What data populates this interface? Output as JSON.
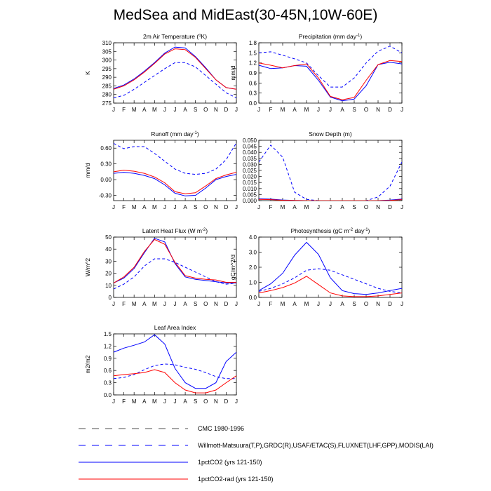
{
  "title": "MedSea and MidEast(30-45N,10W-60E)",
  "months": [
    "J",
    "F",
    "M",
    "A",
    "M",
    "J",
    "J",
    "A",
    "S",
    "O",
    "N",
    "D",
    "J"
  ],
  "legend": [
    {
      "label": "CMC 1980-1996",
      "color": "#4d4d4d",
      "dashed": true
    },
    {
      "label": "Willmott-Matsuura(T,P),GRDC(R),USAF/ETAC(S),FLUXNET(LHF,GPP),MODIS(LAI)",
      "color": "#0000ff",
      "dashed": true
    },
    {
      "label": "1pctCO2 (yrs 121-150)",
      "color": "#0000ff",
      "dashed": false
    },
    {
      "label": "1pctCO2-rad (yrs 121-150)",
      "color": "#ff0000",
      "dashed": false
    }
  ],
  "chart_data": [
    {
      "type": "line",
      "title": "2m Air Temperature (",
      "title_sup": "o",
      "title_end": "K)",
      "ylabel": "K",
      "ylim": [
        275,
        310
      ],
      "yticks": [
        "275",
        "280",
        "285",
        "290",
        "295",
        "300",
        "305",
        "310"
      ],
      "ytick_values": [
        275,
        280,
        285,
        290,
        295,
        300,
        305,
        310
      ],
      "series": [
        {
          "style": "obs-dash",
          "color": "#0000ff",
          "values": [
            278,
            279.5,
            283,
            287,
            291,
            295,
            298.5,
            298.5,
            296,
            291,
            286,
            281,
            278
          ]
        },
        {
          "style": "solid",
          "color": "#0000ff",
          "values": [
            283.5,
            285.5,
            289,
            293.5,
            298.5,
            304,
            307.5,
            307,
            302,
            295.5,
            288.5,
            284,
            283
          ]
        },
        {
          "style": "solid",
          "color": "#ff0000",
          "values": [
            283,
            285,
            288.5,
            293,
            298,
            303.5,
            306.5,
            306,
            301.5,
            295,
            288.5,
            284,
            283
          ]
        }
      ]
    },
    {
      "type": "line",
      "title": "Precipitation (mm day",
      "title_sup": "-1",
      "title_end": ")",
      "ylabel": "mm/d",
      "ylim": [
        0,
        1.8
      ],
      "yticks": [
        "0.0",
        "0.3",
        "0.6",
        "0.9",
        "1.2",
        "1.5",
        "1.8"
      ],
      "ytick_values": [
        0,
        0.3,
        0.6,
        0.9,
        1.2,
        1.5,
        1.8
      ],
      "series": [
        {
          "style": "obs-dash",
          "color": "#0000ff",
          "values": [
            1.5,
            1.53,
            1.43,
            1.32,
            1.2,
            0.82,
            0.48,
            0.48,
            0.75,
            1.2,
            1.55,
            1.7,
            1.5
          ]
        },
        {
          "style": "solid",
          "color": "#0000ff",
          "values": [
            1.13,
            1.03,
            1.05,
            1.12,
            1.1,
            0.68,
            0.18,
            0.07,
            0.12,
            0.52,
            1.15,
            1.22,
            1.17
          ]
        },
        {
          "style": "solid",
          "color": "#ff0000",
          "values": [
            1.2,
            1.13,
            1.05,
            1.12,
            1.17,
            0.75,
            0.2,
            0.1,
            0.17,
            0.68,
            1.15,
            1.27,
            1.24
          ]
        }
      ]
    },
    {
      "type": "line",
      "title": "Runoff (mm day",
      "title_sup": "-1",
      "title_end": ")",
      "ylabel": "mm/d",
      "ylim": [
        -0.4,
        0.75
      ],
      "yticks": [
        "-0.30",
        "0.00",
        "0.30",
        "0.60"
      ],
      "ytick_values": [
        -0.3,
        0,
        0.3,
        0.6
      ],
      "series": [
        {
          "style": "obs-dash",
          "color": "#0000ff",
          "values": [
            0.69,
            0.59,
            0.63,
            0.63,
            0.5,
            0.35,
            0.2,
            0.12,
            0.1,
            0.12,
            0.2,
            0.38,
            0.7
          ]
        },
        {
          "style": "solid",
          "color": "#0000ff",
          "values": [
            0.12,
            0.14,
            0.12,
            0.08,
            0.02,
            -0.1,
            -0.26,
            -0.31,
            -0.3,
            -0.16,
            0.0,
            0.06,
            0.1
          ]
        },
        {
          "style": "solid",
          "color": "#ff0000",
          "values": [
            0.15,
            0.18,
            0.16,
            0.12,
            0.05,
            -0.06,
            -0.23,
            -0.27,
            -0.25,
            -0.12,
            0.02,
            0.09,
            0.14
          ]
        }
      ]
    },
    {
      "type": "line",
      "title": "Snow Depth (m)",
      "title_sup": "",
      "title_end": "",
      "ylabel": "",
      "ylim": [
        0,
        0.05
      ],
      "yticks": [
        "0.000",
        "0.005",
        "0.010",
        "0.015",
        "0.020",
        "0.025",
        "0.030",
        "0.035",
        "0.040",
        "0.045",
        "0.050"
      ],
      "ytick_values": [
        0,
        0.005,
        0.01,
        0.015,
        0.02,
        0.025,
        0.03,
        0.035,
        0.04,
        0.045,
        0.05
      ],
      "series": [
        {
          "style": "obs-dash",
          "color": "#0000ff",
          "values": [
            0.032,
            0.046,
            0.036,
            0.007,
            0.001,
            0,
            0,
            0,
            0,
            0,
            0.003,
            0.012,
            0.032
          ]
        },
        {
          "style": "solid",
          "color": "#0000ff",
          "values": [
            0.0015,
            0.0012,
            0.0005,
            0.0001,
            0,
            0,
            0,
            0,
            0,
            0,
            0,
            0.0004,
            0.0013
          ]
        },
        {
          "style": "solid",
          "color": "#ff0000",
          "values": [
            0.001,
            0.0008,
            0.0003,
            0.0001,
            0,
            0,
            0,
            0,
            0,
            0,
            0,
            0.0002,
            0.0008
          ]
        }
      ]
    },
    {
      "type": "line",
      "title": "Latent Heat Flux (W m",
      "title_sup": "-2",
      "title_end": ")",
      "ylabel": "W/m^2",
      "ylim": [
        0,
        50
      ],
      "yticks": [
        "0",
        "10",
        "20",
        "30",
        "40",
        "50"
      ],
      "ytick_values": [
        0,
        10,
        20,
        30,
        40,
        50
      ],
      "series": [
        {
          "style": "obs-dash",
          "color": "#0000ff",
          "values": [
            7,
            11,
            17,
            26,
            32,
            32,
            29,
            25,
            21,
            17,
            13,
            11,
            12
          ]
        },
        {
          "style": "solid",
          "color": "#0000ff",
          "values": [
            12,
            16,
            24,
            37,
            49,
            46,
            28,
            17,
            15,
            14,
            13,
            12,
            12
          ]
        },
        {
          "style": "solid",
          "color": "#ff0000",
          "values": [
            12,
            17,
            25,
            38,
            48,
            44,
            29,
            18,
            16,
            15,
            14.5,
            12.5,
            12.5
          ]
        }
      ]
    },
    {
      "type": "line",
      "title": "Photosynthesis (gC m",
      "title_sup": "-2",
      "title_end": "day",
      "title_sup2": "-1",
      "title_end2": ")",
      "ylabel": "gC/m^2/d",
      "ylim": [
        0,
        4.0
      ],
      "yticks": [
        "0.0",
        "1.0",
        "2.0",
        "3.0",
        "4.0"
      ],
      "ytick_values": [
        0,
        1,
        2,
        3,
        4
      ],
      "series": [
        {
          "style": "obs-dash",
          "color": "#0000ff",
          "values": [
            0.4,
            0.6,
            0.9,
            1.3,
            1.8,
            1.9,
            1.8,
            1.5,
            1.2,
            0.9,
            0.6,
            0.4,
            0.3
          ]
        },
        {
          "style": "solid",
          "color": "#0000ff",
          "values": [
            0.45,
            0.9,
            1.6,
            2.8,
            3.65,
            2.85,
            1.3,
            0.45,
            0.25,
            0.2,
            0.3,
            0.45,
            0.6
          ]
        },
        {
          "style": "solid",
          "color": "#ff0000",
          "values": [
            0.3,
            0.45,
            0.65,
            0.95,
            1.4,
            0.85,
            0.3,
            0.1,
            0.05,
            0.05,
            0.1,
            0.2,
            0.3
          ]
        }
      ]
    },
    {
      "type": "line",
      "title": "Leaf Area Index",
      "title_sup": "",
      "title_end": "",
      "ylabel": "m2/m2",
      "ylim": [
        0,
        1.5
      ],
      "yticks": [
        "0.0",
        "0.3",
        "0.6",
        "0.9",
        "1.2",
        "1.5"
      ],
      "ytick_values": [
        0,
        0.3,
        0.6,
        0.9,
        1.2,
        1.5
      ],
      "series": [
        {
          "style": "obs-dash",
          "color": "#0000ff",
          "values": [
            0.4,
            0.43,
            0.5,
            0.62,
            0.72,
            0.76,
            0.74,
            0.68,
            0.63,
            0.55,
            0.45,
            0.4,
            0.4
          ]
        },
        {
          "style": "solid",
          "color": "#0000ff",
          "values": [
            1.05,
            1.15,
            1.22,
            1.3,
            1.48,
            1.25,
            0.65,
            0.3,
            0.16,
            0.16,
            0.3,
            0.82,
            1.05
          ]
        },
        {
          "style": "solid",
          "color": "#ff0000",
          "values": [
            0.47,
            0.5,
            0.52,
            0.55,
            0.62,
            0.55,
            0.3,
            0.12,
            0.05,
            0.05,
            0.12,
            0.3,
            0.47
          ]
        }
      ]
    }
  ]
}
